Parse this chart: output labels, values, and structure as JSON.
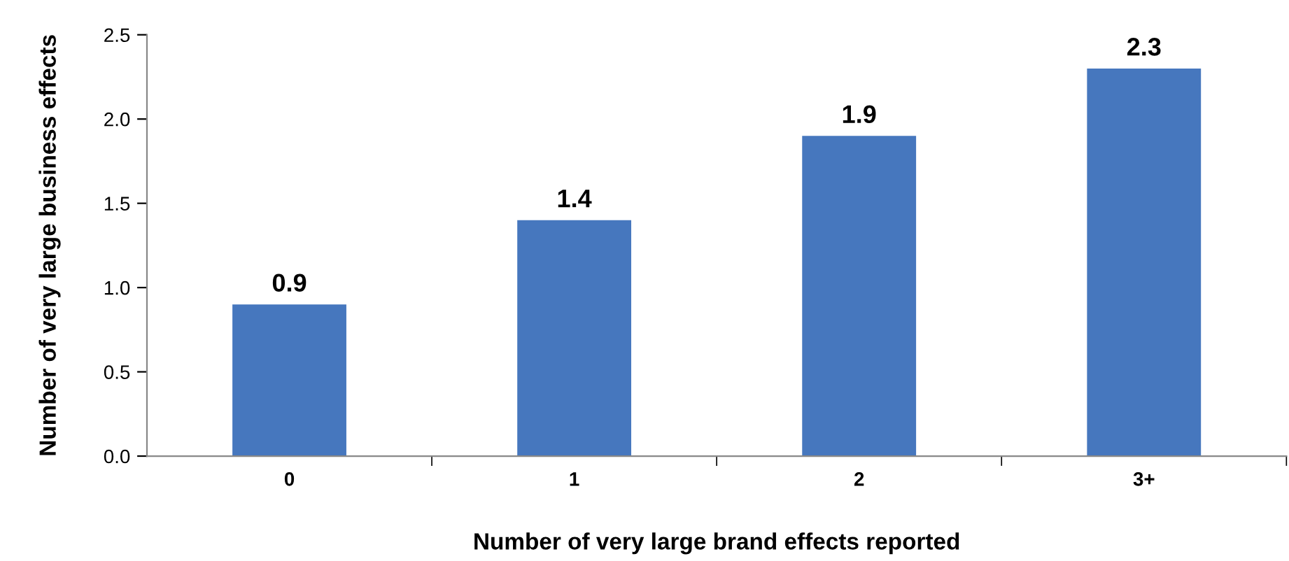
{
  "chart_data": {
    "type": "bar",
    "xlabel": "Number of very large brand effects reported",
    "ylabel": "Number of very large business effects",
    "categories": [
      "0",
      "1",
      "2",
      "3+"
    ],
    "values": [
      0.9,
      1.4,
      1.9,
      2.3
    ],
    "color": "#4677be",
    "ylim": [
      0,
      2.5
    ],
    "yticks": [
      {
        "value": 0,
        "label": "0.0"
      },
      {
        "value": 0.5,
        "label": "0.5"
      },
      {
        "value": 1,
        "label": "1.0"
      },
      {
        "value": 1.5,
        "label": "1.5"
      },
      {
        "value": 2,
        "label": "2.0"
      },
      {
        "value": 2.5,
        "label": "2.5"
      }
    ],
    "data_labels": true,
    "grid": false,
    "legend": false
  }
}
